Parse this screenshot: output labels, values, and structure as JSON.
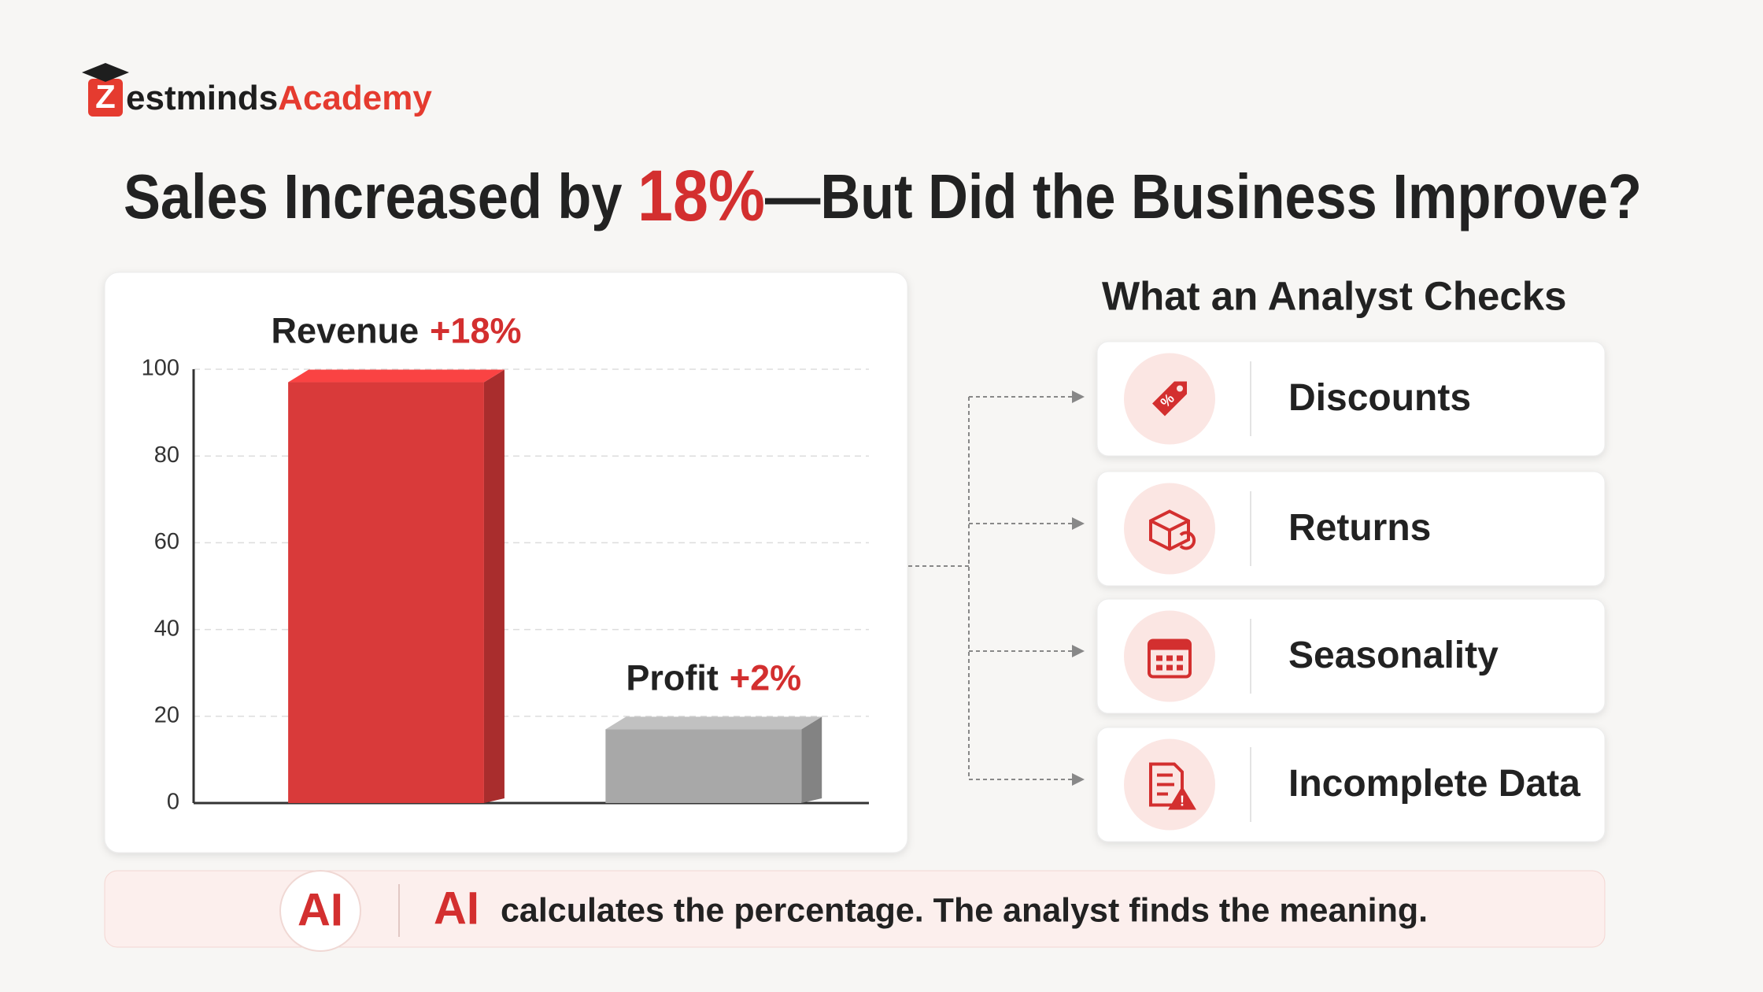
{
  "logo": {
    "mark": "Z",
    "name": "estminds",
    "suffix": "Academy"
  },
  "header": {
    "title_parts": [
      "Sales Increased by ",
      "18%",
      "—But Did the Business Improve?"
    ]
  },
  "chart_data": {
    "type": "bar",
    "categories": [
      "Revenue",
      "Profit"
    ],
    "annotations": [
      "+18%",
      "+2%"
    ],
    "values": [
      97,
      17
    ],
    "colors": [
      "#d93a3a",
      "#a8a8a8"
    ],
    "ylim": [
      0,
      100
    ],
    "yticks": [
      0,
      20,
      40,
      60,
      80,
      100
    ],
    "grid": true
  },
  "checks": {
    "title": "What an Analyst Checks",
    "items": [
      "Discounts",
      "Returns",
      "Seasonality",
      "Incomplete Data"
    ]
  },
  "footer": {
    "badge": "AI",
    "lead": "AI",
    "text": "calculates the percentage. The analyst finds the meaning."
  }
}
